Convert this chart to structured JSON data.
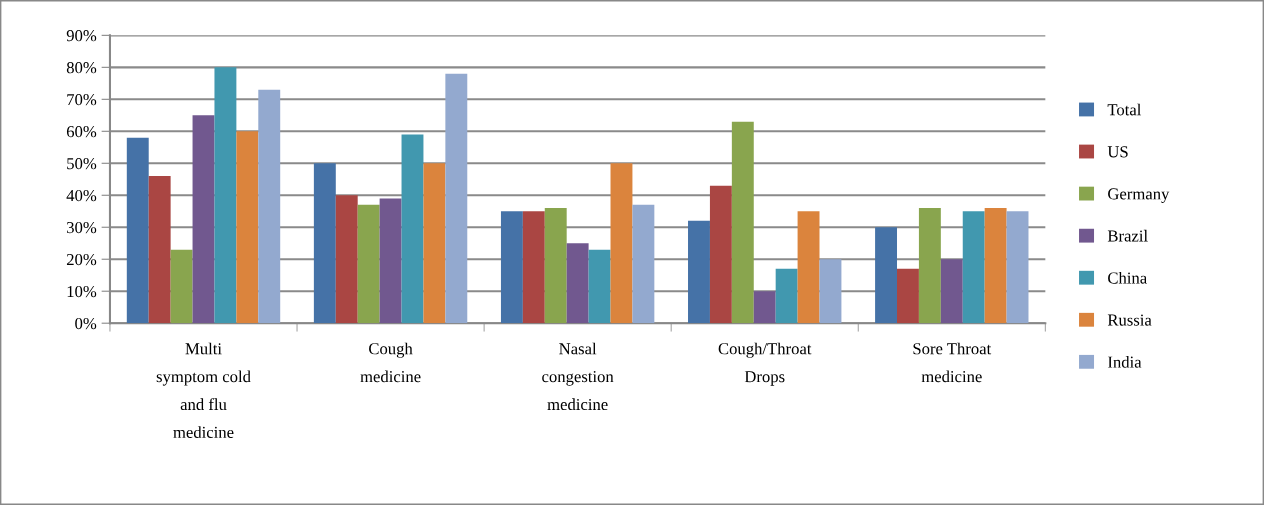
{
  "chart_data": {
    "type": "bar",
    "categories": [
      "Multi\nsymptom cold\nand flu\nmedicine",
      "Cough\nmedicine",
      "Nasal\ncongestion\nmedicine",
      "Cough/Throat\nDrops",
      "Sore Throat\nmedicine"
    ],
    "series": [
      {
        "name": "Total",
        "color": "#4572a7",
        "values": [
          58,
          50,
          35,
          32,
          30
        ]
      },
      {
        "name": "US",
        "color": "#aa4643",
        "values": [
          46,
          40,
          35,
          43,
          17
        ]
      },
      {
        "name": "Germany",
        "color": "#89a54e",
        "values": [
          23,
          37,
          36,
          63,
          36
        ]
      },
      {
        "name": "Brazil",
        "color": "#71588f",
        "values": [
          65,
          39,
          25,
          10,
          20
        ]
      },
      {
        "name": "China",
        "color": "#4198af",
        "values": [
          80,
          59,
          23,
          17,
          35
        ]
      },
      {
        "name": "Russia",
        "color": "#db843d",
        "values": [
          60,
          50,
          50,
          35,
          36
        ]
      },
      {
        "name": "India",
        "color": "#93a9cf",
        "values": [
          73,
          78,
          37,
          20,
          35
        ]
      }
    ],
    "ylim": [
      0,
      90
    ],
    "yticks": [
      {
        "value": 0,
        "label": "0%"
      },
      {
        "value": 10,
        "label": "10%"
      },
      {
        "value": 20,
        "label": "20%"
      },
      {
        "value": 30,
        "label": "30%"
      },
      {
        "value": 40,
        "label": "40%"
      },
      {
        "value": 50,
        "label": "50%"
      },
      {
        "value": 60,
        "label": "60%"
      },
      {
        "value": 70,
        "label": "70%"
      },
      {
        "value": 80,
        "label": "80%"
      },
      {
        "value": 90,
        "label": "90%"
      }
    ],
    "grid": "y",
    "legend": "right"
  }
}
